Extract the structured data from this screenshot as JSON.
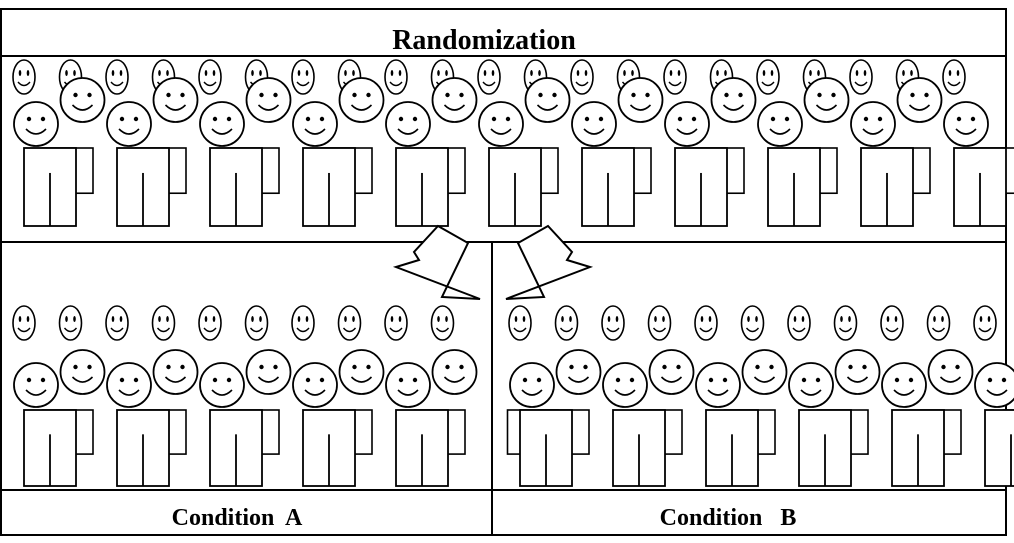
{
  "diagram": {
    "title": "Randomization",
    "conditions": [
      {
        "label": "Condition  A"
      },
      {
        "label": "Condition   B"
      }
    ],
    "colors": {
      "stroke": "#000000",
      "fill": "#ffffff"
    },
    "icons": [
      "smiley-face-person-icon",
      "arrow-down-right-icon",
      "arrow-down-left-icon"
    ]
  }
}
